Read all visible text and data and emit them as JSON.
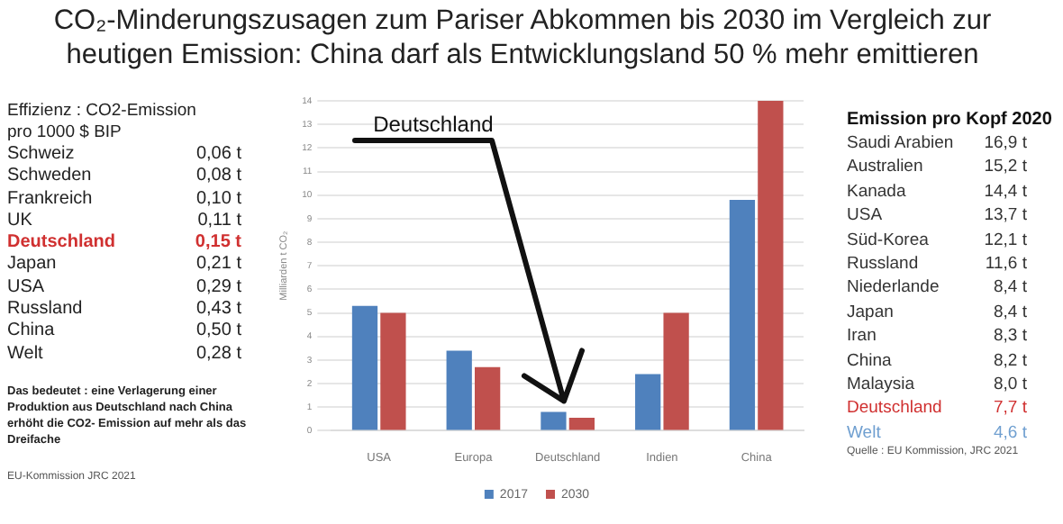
{
  "chart_data": [
    {
      "type": "other",
      "title": "Effizienz : CO2-Emission pro 1000 $ BIP",
      "annotations": [
        "Schweiz 0,06 t",
        "Schweden 0,08 t",
        "Frankreich 0,10 t",
        "UK 0,11 t",
        "Deutschland 0,15 t",
        "Japan 0,21 t",
        "USA 0,29 t",
        "Russland 0,43 t",
        "China 0,50 t",
        "Welt 0,28 t",
        "Das bedeutet : eine Verlagerung einer Produktion aus Deutschland nach China erhöht die CO2- Emission auf mehr als das Dreifache",
        "EU-Kommission JRC 2021"
      ]
    },
    {
      "type": "bar",
      "title": "CO₂-Minderungszusagen zum Pariser Abkommen bis 2030  im Vergleich zur heutigen Emission: China darf als Entwicklungsland 50 % mehr emittieren",
      "ylabel": "Milliarden t CO₂",
      "categories": [
        "USA",
        "Europa",
        "Deutschland",
        "Indien",
        "China"
      ],
      "series": [
        {
          "name": "2017",
          "color": "#4f81bd",
          "values": [
            5.3,
            3.4,
            0.8,
            2.4,
            9.8
          ]
        },
        {
          "name": "2030",
          "color": "#c0504d",
          "values": [
            5.0,
            2.7,
            0.55,
            5.0,
            14.0
          ]
        }
      ],
      "ylim": [
        0,
        14
      ],
      "yticks": [
        0,
        1,
        2,
        3,
        4,
        5,
        6,
        7,
        8,
        9,
        10,
        11,
        12,
        13,
        14
      ],
      "grid": "y",
      "legend": "bottom",
      "annotations": [
        "Deutschland"
      ]
    },
    {
      "type": "other",
      "title": "Emission pro Kopf 2020",
      "annotations": [
        "Saudi Arabien 16,9 t",
        "Australien 15,2 t",
        "Kanada 14,4 t",
        "USA 13,7 t",
        "Süd-Korea 12,1 t",
        "Russland 11,6 t",
        "Niederlande 8,4 t",
        "Japan 8,4 t",
        "Iran 8,3 t",
        "China 8,2 t",
        "Malaysia 8,0 t",
        "Deutschland 7,7 t",
        "Welt 4,6 t",
        "Quelle : EU Kommission, JRC 2021"
      ]
    }
  ]
}
